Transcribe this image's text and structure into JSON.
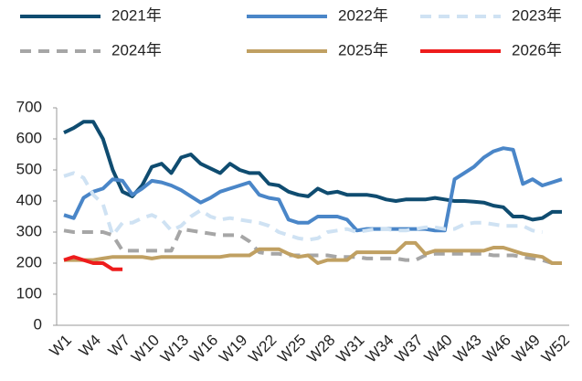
{
  "chart_data": {
    "type": "line",
    "categories": [
      "W1",
      null,
      null,
      "W4",
      null,
      null,
      "W7",
      null,
      null,
      "W10",
      null,
      null,
      "W13",
      null,
      null,
      "W16",
      null,
      null,
      "W19",
      null,
      null,
      "W22",
      null,
      null,
      "W25",
      null,
      null,
      "W28",
      null,
      null,
      "W31",
      null,
      null,
      "W34",
      null,
      null,
      "W37",
      null,
      null,
      "W40",
      null,
      null,
      "W43",
      null,
      null,
      "W46",
      null,
      null,
      "W49",
      null,
      null,
      "W52"
    ],
    "ylim": [
      0,
      700
    ],
    "yticks": [
      0,
      100,
      200,
      300,
      400,
      500,
      600,
      700
    ],
    "grid": false,
    "series": [
      {
        "name": "2021年",
        "color": "#0f4c70",
        "dashed": false,
        "values": [
          620,
          635,
          655,
          655,
          600,
          500,
          430,
          415,
          450,
          510,
          520,
          490,
          540,
          550,
          520,
          505,
          490,
          520,
          500,
          490,
          490,
          455,
          450,
          430,
          420,
          415,
          440,
          425,
          430,
          420,
          420,
          420,
          415,
          405,
          400,
          405,
          405,
          405,
          410,
          405,
          400,
          400,
          398,
          395,
          385,
          380,
          350,
          350,
          340,
          345,
          365,
          365
        ]
      },
      {
        "name": "2022年",
        "color": "#4a86c8",
        "dashed": false,
        "values": [
          355,
          345,
          410,
          430,
          440,
          470,
          465,
          420,
          440,
          465,
          460,
          450,
          435,
          415,
          395,
          410,
          430,
          440,
          450,
          460,
          420,
          410,
          405,
          340,
          330,
          330,
          350,
          350,
          350,
          340,
          305,
          310,
          310,
          310,
          310,
          310,
          310,
          310,
          305,
          305,
          470,
          490,
          510,
          540,
          560,
          570,
          565,
          455,
          470,
          450,
          460,
          470
        ]
      },
      {
        "name": "2023年",
        "color": "#cfe2f3",
        "dashed": true,
        "values": [
          480,
          490,
          475,
          420,
          390,
          290,
          330,
          330,
          345,
          355,
          340,
          305,
          320,
          350,
          370,
          350,
          340,
          345,
          340,
          335,
          330,
          320,
          300,
          290,
          280,
          275,
          280,
          300,
          305,
          310,
          300,
          305,
          310,
          310,
          305,
          305,
          310,
          315,
          315,
          310,
          310,
          325,
          330,
          330,
          325,
          320,
          320,
          320,
          305,
          300,
          null,
          null
        ]
      },
      {
        "name": "2024年",
        "color": "#a6a6a6",
        "dashed": true,
        "values": [
          305,
          300,
          300,
          300,
          300,
          290,
          240,
          240,
          240,
          240,
          240,
          240,
          310,
          305,
          300,
          295,
          290,
          290,
          290,
          270,
          235,
          230,
          230,
          225,
          225,
          225,
          225,
          225,
          220,
          220,
          220,
          215,
          215,
          215,
          215,
          210,
          210,
          225,
          230,
          230,
          230,
          230,
          230,
          230,
          225,
          225,
          225,
          220,
          215,
          210,
          200,
          null
        ]
      },
      {
        "name": "2025年",
        "color": "#c0a062",
        "dashed": false,
        "values": [
          210,
          210,
          210,
          210,
          215,
          220,
          220,
          220,
          220,
          215,
          220,
          220,
          220,
          220,
          220,
          220,
          220,
          225,
          225,
          225,
          245,
          245,
          245,
          230,
          220,
          225,
          200,
          210,
          210,
          210,
          235,
          235,
          235,
          235,
          235,
          265,
          265,
          230,
          240,
          240,
          240,
          240,
          240,
          240,
          250,
          250,
          240,
          230,
          225,
          220,
          200,
          200
        ]
      },
      {
        "name": "2026年",
        "color": "#ee1c1c",
        "dashed": false,
        "values": [
          210,
          220,
          210,
          200,
          200,
          180,
          180,
          null,
          null,
          null,
          null,
          null,
          null,
          null,
          null,
          null,
          null,
          null,
          null,
          null,
          null,
          null,
          null,
          null,
          null,
          null,
          null,
          null,
          null,
          null,
          null,
          null,
          null,
          null,
          null,
          null,
          null,
          null,
          null,
          null,
          null,
          null,
          null,
          null,
          null,
          null,
          null,
          null,
          null,
          null,
          null,
          null
        ]
      }
    ]
  }
}
